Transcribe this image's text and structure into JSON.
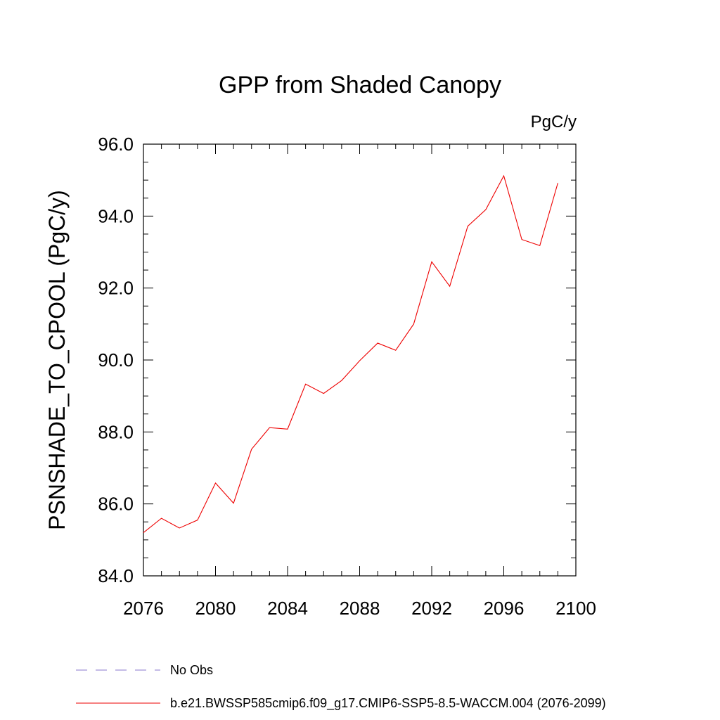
{
  "chart_data": {
    "type": "line",
    "title": "GPP from Shaded Canopy",
    "units": "PgC/y",
    "ylabel": "PSNSHADE_TO_CPOOL  (PgC/y)",
    "xlabel": "",
    "xlim": [
      2076,
      2100
    ],
    "ylim": [
      84.0,
      96.0
    ],
    "x_ticks": [
      "2076",
      "2080",
      "2084",
      "2088",
      "2092",
      "2096",
      "2100"
    ],
    "y_ticks": [
      "84.0",
      "86.0",
      "88.0",
      "90.0",
      "92.0",
      "94.0",
      "96.0"
    ],
    "grid": false,
    "legend": [
      {
        "label": "No Obs",
        "color": "#8877cc",
        "dash": "dashed"
      },
      {
        "label": "b.e21.BWSSP585cmip6.f09_g17.CMIP6-SSP5-8.5-WACCM.004 (2076-2099)",
        "color": "#ee0000",
        "dash": "solid"
      }
    ],
    "series": [
      {
        "color": "#ee0000",
        "x": [
          2076,
          2077,
          2078,
          2079,
          2080,
          2081,
          2082,
          2083,
          2084,
          2085,
          2086,
          2087,
          2088,
          2089,
          2090,
          2091,
          2092,
          2093,
          2094,
          2095,
          2096,
          2097,
          2098,
          2099
        ],
        "values": [
          85.2,
          85.6,
          85.33,
          85.55,
          86.58,
          86.02,
          87.52,
          88.12,
          88.08,
          89.33,
          89.07,
          89.43,
          89.98,
          90.47,
          90.27,
          91.0,
          92.73,
          92.05,
          93.72,
          94.18,
          95.12,
          93.35,
          93.18,
          94.92
        ]
      }
    ]
  }
}
